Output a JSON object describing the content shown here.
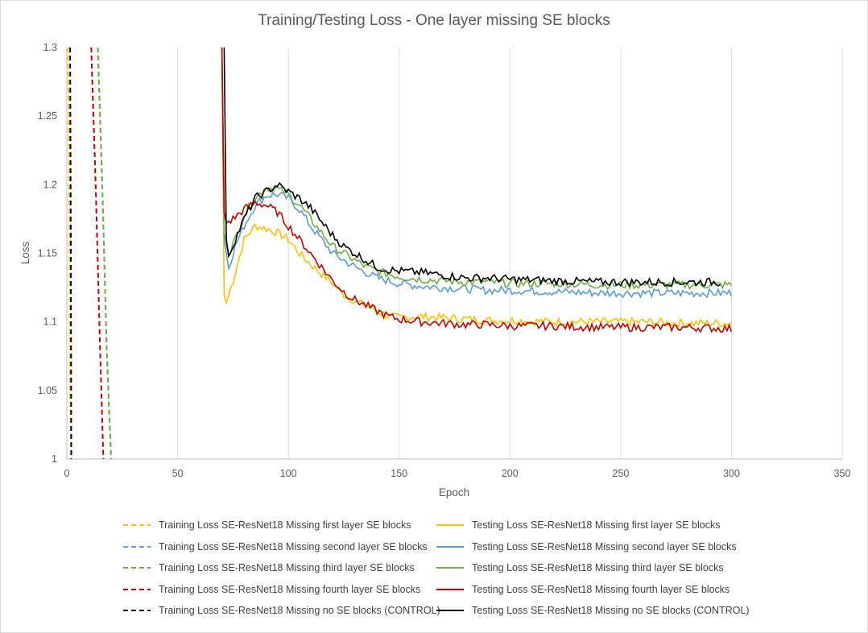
{
  "chart_data": {
    "type": "line",
    "title": "Training/Testing Loss - One layer missing SE blocks",
    "xlabel": "Epoch",
    "ylabel": "Loss",
    "xlim": [
      0,
      350
    ],
    "ylim": [
      1,
      1.3
    ],
    "xticks": [
      "0",
      "50",
      "100",
      "150",
      "200",
      "250",
      "300",
      "350"
    ],
    "yticks": [
      "1",
      "1.05",
      "1.1",
      "1.15",
      "1.2",
      "1.25",
      "1.3"
    ],
    "grid": "vertical",
    "legend_position": "bottom",
    "series": [
      {
        "name": "Training Loss SE-ResNet18 Missing first layer SE blocks",
        "color": "#FFC000",
        "dash": "dashed",
        "points": [
          [
            0.5,
            1.3
          ],
          [
            1,
            1.22
          ],
          [
            1.5,
            1.05
          ],
          [
            2,
            1.0
          ]
        ]
      },
      {
        "name": "Testing Loss SE-ResNet18 Missing first layer SE blocks",
        "color": "#FFC000",
        "dash": "solid",
        "points": [
          [
            70,
            1.3
          ],
          [
            71,
            1.12
          ],
          [
            72,
            1.114
          ],
          [
            75,
            1.13
          ],
          [
            80,
            1.16
          ],
          [
            85,
            1.17
          ],
          [
            90,
            1.168
          ],
          [
            95,
            1.165
          ],
          [
            100,
            1.16
          ],
          [
            105,
            1.15
          ],
          [
            110,
            1.142
          ],
          [
            115,
            1.135
          ],
          [
            120,
            1.128
          ],
          [
            125,
            1.12
          ],
          [
            130,
            1.115
          ],
          [
            135,
            1.112
          ],
          [
            140,
            1.108
          ],
          [
            145,
            1.104
          ],
          [
            150,
            1.103
          ],
          [
            160,
            1.104
          ],
          [
            170,
            1.103
          ],
          [
            180,
            1.102
          ],
          [
            190,
            1.101
          ],
          [
            200,
            1.101
          ],
          [
            220,
            1.1
          ],
          [
            240,
            1.1
          ],
          [
            260,
            1.1
          ],
          [
            280,
            1.099
          ],
          [
            300,
            1.099
          ]
        ]
      },
      {
        "name": "Training Loss SE-ResNet18 Missing second layer SE blocks",
        "color": "#5B9BD5",
        "dash": "dashed",
        "points": [
          [
            14,
            1.3
          ],
          [
            16,
            1.2
          ],
          [
            18,
            1.08
          ],
          [
            20,
            1.0
          ]
        ]
      },
      {
        "name": "Testing Loss SE-ResNet18 Missing second layer SE blocks",
        "color": "#5B9BD5",
        "dash": "solid",
        "points": [
          [
            70,
            1.3
          ],
          [
            71,
            1.16
          ],
          [
            73,
            1.14
          ],
          [
            76,
            1.155
          ],
          [
            80,
            1.17
          ],
          [
            85,
            1.185
          ],
          [
            90,
            1.192
          ],
          [
            95,
            1.193
          ],
          [
            100,
            1.19
          ],
          [
            105,
            1.182
          ],
          [
            110,
            1.17
          ],
          [
            115,
            1.16
          ],
          [
            120,
            1.15
          ],
          [
            125,
            1.145
          ],
          [
            130,
            1.14
          ],
          [
            135,
            1.136
          ],
          [
            140,
            1.132
          ],
          [
            145,
            1.13
          ],
          [
            150,
            1.128
          ],
          [
            160,
            1.126
          ],
          [
            170,
            1.125
          ],
          [
            180,
            1.124
          ],
          [
            190,
            1.123
          ],
          [
            200,
            1.123
          ],
          [
            220,
            1.122
          ],
          [
            240,
            1.121
          ],
          [
            260,
            1.121
          ],
          [
            280,
            1.121
          ],
          [
            300,
            1.121
          ]
        ]
      },
      {
        "name": "Training Loss SE-ResNet18 Missing third layer SE blocks",
        "color": "#70AD47",
        "dash": "dashed",
        "points": [
          [
            14,
            1.3
          ],
          [
            16,
            1.2
          ],
          [
            18,
            1.08
          ],
          [
            20,
            1.0
          ]
        ]
      },
      {
        "name": "Testing Loss SE-ResNet18 Missing third layer SE blocks",
        "color": "#70AD47",
        "dash": "solid",
        "points": [
          [
            70,
            1.3
          ],
          [
            71,
            1.165
          ],
          [
            73,
            1.15
          ],
          [
            76,
            1.16
          ],
          [
            80,
            1.178
          ],
          [
            85,
            1.19
          ],
          [
            90,
            1.198
          ],
          [
            95,
            1.197
          ],
          [
            100,
            1.193
          ],
          [
            105,
            1.185
          ],
          [
            110,
            1.175
          ],
          [
            115,
            1.165
          ],
          [
            120,
            1.155
          ],
          [
            125,
            1.15
          ],
          [
            130,
            1.145
          ],
          [
            135,
            1.14
          ],
          [
            140,
            1.137
          ],
          [
            145,
            1.135
          ],
          [
            150,
            1.133
          ],
          [
            160,
            1.131
          ],
          [
            170,
            1.13
          ],
          [
            180,
            1.129
          ],
          [
            190,
            1.129
          ],
          [
            200,
            1.128
          ],
          [
            220,
            1.128
          ],
          [
            240,
            1.127
          ],
          [
            260,
            1.127
          ],
          [
            280,
            1.127
          ],
          [
            300,
            1.127
          ]
        ]
      },
      {
        "name": "Training Loss SE-ResNet18 Missing fourth layer SE blocks",
        "color": "#C00000",
        "dash": "dashed",
        "points": [
          [
            11,
            1.3
          ],
          [
            13,
            1.2
          ],
          [
            15,
            1.08
          ],
          [
            16.5,
            1.0
          ]
        ]
      },
      {
        "name": "Testing Loss SE-ResNet18 Missing fourth layer SE blocks",
        "color": "#C00000",
        "dash": "solid",
        "points": [
          [
            70,
            1.3
          ],
          [
            71,
            1.18
          ],
          [
            72,
            1.172
          ],
          [
            75,
            1.175
          ],
          [
            80,
            1.182
          ],
          [
            85,
            1.187
          ],
          [
            90,
            1.185
          ],
          [
            95,
            1.18
          ],
          [
            100,
            1.17
          ],
          [
            105,
            1.16
          ],
          [
            110,
            1.15
          ],
          [
            115,
            1.14
          ],
          [
            120,
            1.13
          ],
          [
            125,
            1.122
          ],
          [
            130,
            1.116
          ],
          [
            135,
            1.112
          ],
          [
            140,
            1.108
          ],
          [
            145,
            1.104
          ],
          [
            150,
            1.102
          ],
          [
            160,
            1.1
          ],
          [
            170,
            1.099
          ],
          [
            180,
            1.098
          ],
          [
            190,
            1.098
          ],
          [
            200,
            1.097
          ],
          [
            220,
            1.097
          ],
          [
            240,
            1.096
          ],
          [
            260,
            1.096
          ],
          [
            280,
            1.096
          ],
          [
            300,
            1.095
          ]
        ]
      },
      {
        "name": "Training Loss SE-ResNet18 Missing no SE blocks (CONTROL)",
        "color": "#000000",
        "dash": "dashed",
        "points": [
          [
            1.5,
            1.3
          ],
          [
            1.8,
            1.15
          ],
          [
            2,
            1.0
          ]
        ]
      },
      {
        "name": "Testing Loss SE-ResNet18 Missing no SE blocks (CONTROL)",
        "color": "#000000",
        "dash": "solid",
        "points": [
          [
            71,
            1.3
          ],
          [
            72,
            1.16
          ],
          [
            73,
            1.148
          ],
          [
            76,
            1.16
          ],
          [
            80,
            1.175
          ],
          [
            85,
            1.19
          ],
          [
            90,
            1.195
          ],
          [
            95,
            1.2
          ],
          [
            100,
            1.195
          ],
          [
            105,
            1.19
          ],
          [
            110,
            1.183
          ],
          [
            115,
            1.173
          ],
          [
            120,
            1.163
          ],
          [
            125,
            1.155
          ],
          [
            130,
            1.15
          ],
          [
            135,
            1.145
          ],
          [
            140,
            1.14
          ],
          [
            145,
            1.138
          ],
          [
            150,
            1.137
          ],
          [
            160,
            1.136
          ],
          [
            170,
            1.134
          ],
          [
            180,
            1.132
          ],
          [
            190,
            1.132
          ],
          [
            200,
            1.131
          ],
          [
            220,
            1.13
          ],
          [
            240,
            1.129
          ],
          [
            260,
            1.129
          ],
          [
            280,
            1.129
          ],
          [
            295,
            1.129
          ]
        ]
      }
    ]
  }
}
